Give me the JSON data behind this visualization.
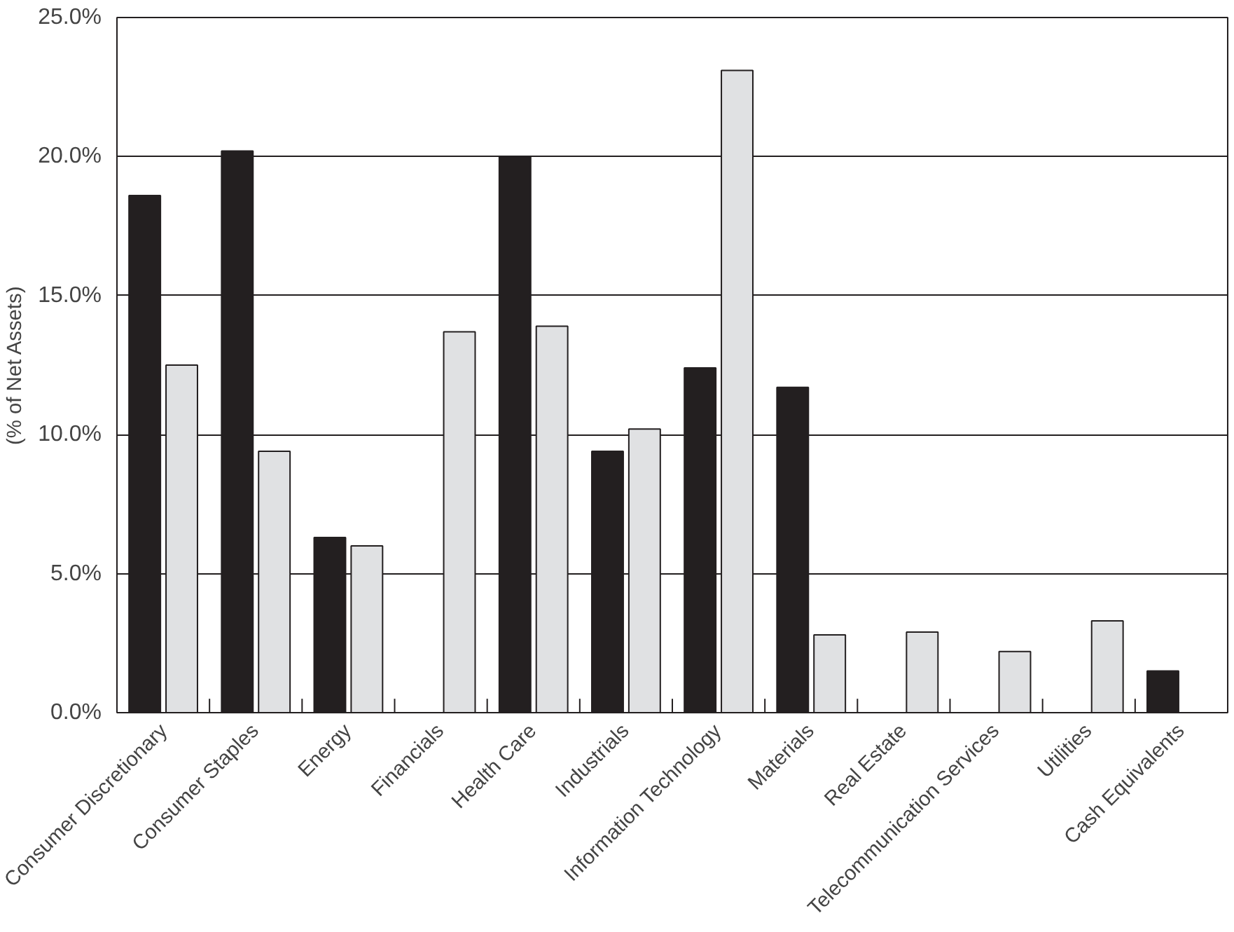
{
  "chart_data": {
    "type": "bar",
    "ylabel": "(% of Net Assets)",
    "categories": [
      "Consumer Discretionary",
      "Consumer Staples",
      "Energy",
      "Financials",
      "Health Care",
      "Industrials",
      "Information Technology",
      "Materials",
      "Real Estate",
      "Telecommunication Services",
      "Utilities",
      "Cash Equivalents"
    ],
    "series": [
      {
        "color": "#231f20",
        "values": [
          18.6,
          20.2,
          6.3,
          0,
          20.0,
          9.4,
          12.4,
          11.7,
          0,
          0,
          0,
          1.5
        ]
      },
      {
        "color": "#e0e1e3",
        "values": [
          12.5,
          9.4,
          6.0,
          13.7,
          13.9,
          10.2,
          23.1,
          2.8,
          2.9,
          2.2,
          3.3,
          0
        ]
      }
    ],
    "ylim": [
      0,
      25
    ],
    "yticks": [
      {
        "value": 0,
        "label": "0.0%"
      },
      {
        "value": 5,
        "label": "5.0%"
      },
      {
        "value": 10,
        "label": "10.0%"
      },
      {
        "value": 15,
        "label": "15.0%"
      },
      {
        "value": 20,
        "label": "20.0%"
      },
      {
        "value": 25,
        "label": "25.0%"
      }
    ],
    "grid": "y"
  }
}
